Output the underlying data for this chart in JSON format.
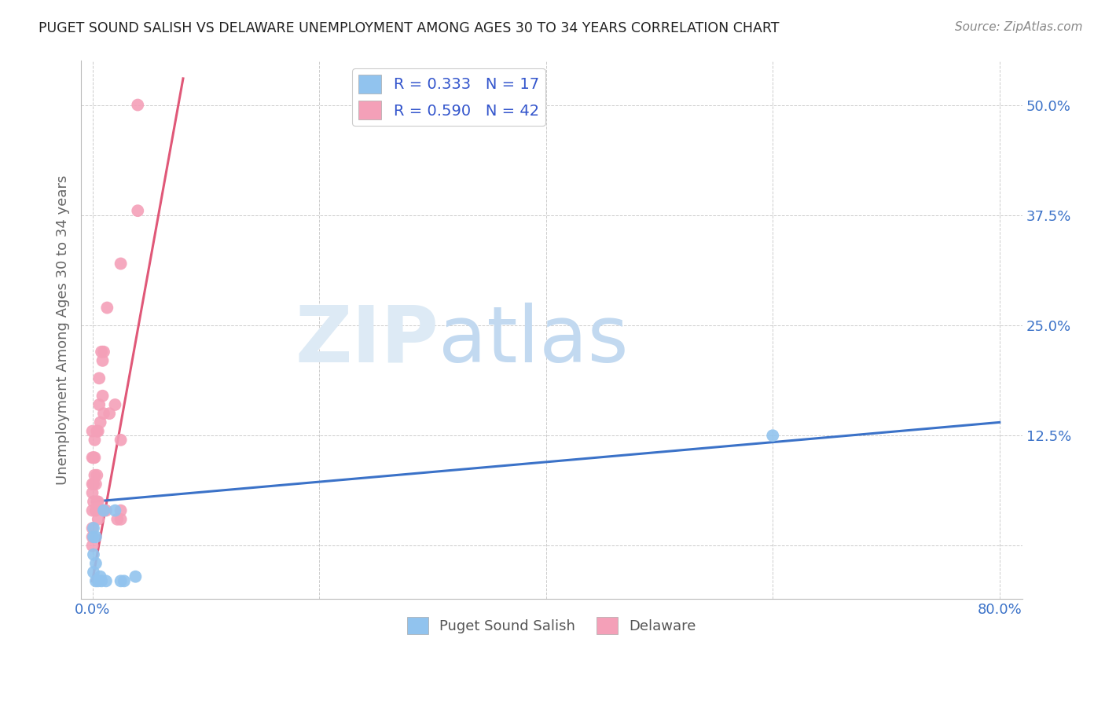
{
  "title": "PUGET SOUND SALISH VS DELAWARE UNEMPLOYMENT AMONG AGES 30 TO 34 YEARS CORRELATION CHART",
  "source": "Source: ZipAtlas.com",
  "ylabel": "Unemployment Among Ages 30 to 34 years",
  "xlabel": "",
  "xlim": [
    -0.01,
    0.82
  ],
  "ylim": [
    -0.06,
    0.55
  ],
  "xticks": [
    0.0,
    0.2,
    0.4,
    0.6,
    0.8
  ],
  "xtick_labels": [
    "0.0%",
    "",
    "",
    "",
    "80.0%"
  ],
  "ytick_positions": [
    0.0,
    0.125,
    0.25,
    0.375,
    0.5
  ],
  "ytick_labels": [
    "",
    "12.5%",
    "25.0%",
    "37.5%",
    "50.0%"
  ],
  "blue_label": "Puget Sound Salish",
  "pink_label": "Delaware",
  "blue_R": "0.333",
  "blue_N": "17",
  "pink_R": "0.590",
  "pink_N": "42",
  "blue_color": "#91C3EE",
  "pink_color": "#F4A0B8",
  "blue_line_color": "#3B72C8",
  "pink_line_color": "#E05878",
  "legend_text_color": "#3355CC",
  "axis_label_color": "#666666",
  "tick_label_color": "#3B72C8",
  "watermark_ZIP": "ZIP",
  "watermark_atlas": "atlas",
  "watermark_zip_color": "#DDEAF5",
  "watermark_atlas_color": "#C2D9F0",
  "background_color": "#FFFFFF",
  "blue_x": [
    0.001,
    0.001,
    0.001,
    0.001,
    0.003,
    0.003,
    0.003,
    0.005,
    0.007,
    0.008,
    0.01,
    0.012,
    0.02,
    0.025,
    0.028,
    0.038,
    0.6
  ],
  "blue_y": [
    0.02,
    0.01,
    -0.01,
    -0.03,
    0.01,
    -0.02,
    -0.04,
    -0.04,
    -0.035,
    -0.04,
    0.04,
    -0.04,
    0.04,
    -0.04,
    -0.04,
    -0.035,
    0.125
  ],
  "pink_x": [
    0.0,
    0.0,
    0.0,
    0.0,
    0.0,
    0.0,
    0.0,
    0.0,
    0.001,
    0.001,
    0.001,
    0.002,
    0.002,
    0.002,
    0.003,
    0.003,
    0.004,
    0.004,
    0.004,
    0.005,
    0.005,
    0.005,
    0.006,
    0.006,
    0.007,
    0.008,
    0.009,
    0.009,
    0.01,
    0.01,
    0.01,
    0.012,
    0.013,
    0.015,
    0.02,
    0.022,
    0.025,
    0.025,
    0.025,
    0.025,
    0.04,
    0.04
  ],
  "pink_y": [
    0.0,
    0.01,
    0.02,
    0.04,
    0.06,
    0.07,
    0.1,
    0.13,
    0.05,
    0.07,
    0.1,
    0.08,
    0.1,
    0.12,
    0.04,
    0.07,
    0.05,
    0.08,
    0.13,
    0.03,
    0.05,
    0.13,
    0.16,
    0.19,
    0.14,
    0.22,
    0.17,
    0.21,
    0.04,
    0.15,
    0.22,
    0.04,
    0.27,
    0.15,
    0.16,
    0.03,
    0.03,
    0.04,
    0.12,
    0.32,
    0.5,
    0.38
  ],
  "pink_trend_x": [
    0.0,
    0.08
  ],
  "pink_trend_y": [
    -0.04,
    0.53
  ],
  "blue_trend_x": [
    0.0,
    0.8
  ],
  "blue_trend_y": [
    0.05,
    0.14
  ],
  "grid_color": "#CCCCCC",
  "grid_style": "--"
}
